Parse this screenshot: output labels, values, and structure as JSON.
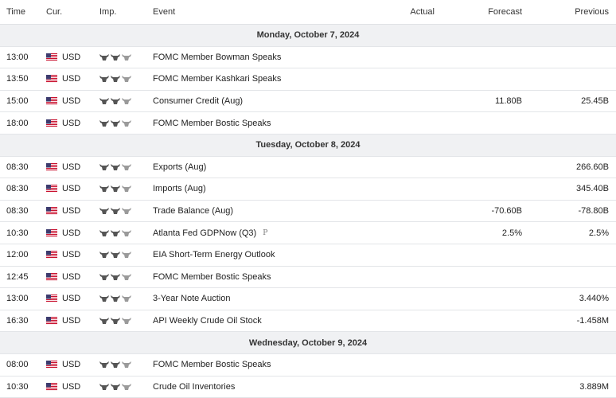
{
  "header": {
    "time": "Time",
    "currency": "Cur.",
    "importance": "Imp.",
    "event": "Event",
    "actual": "Actual",
    "forecast": "Forecast",
    "previous": "Previous"
  },
  "sections": [
    {
      "date": "Monday, October 7, 2024",
      "rows": [
        {
          "time": "13:00",
          "currency": "USD",
          "event": "FOMC Member Bowman Speaks"
        },
        {
          "time": "13:50",
          "currency": "USD",
          "event": "FOMC Member Kashkari Speaks"
        },
        {
          "time": "15:00",
          "currency": "USD",
          "event": "Consumer Credit (Aug)",
          "forecast": "11.80B",
          "previous": "25.45B"
        },
        {
          "time": "18:00",
          "currency": "USD",
          "event": "FOMC Member Bostic Speaks"
        }
      ]
    },
    {
      "date": "Tuesday, October 8, 2024",
      "rows": [
        {
          "time": "08:30",
          "currency": "USD",
          "event": "Exports (Aug)",
          "previous": "266.60B"
        },
        {
          "time": "08:30",
          "currency": "USD",
          "event": "Imports (Aug)",
          "previous": "345.40B"
        },
        {
          "time": "08:30",
          "currency": "USD",
          "event": "Trade Balance (Aug)",
          "forecast": "-70.60B",
          "previous": "-78.80B"
        },
        {
          "time": "10:30",
          "currency": "USD",
          "event": "Atlanta Fed GDPNow (Q3)",
          "badge": "P",
          "forecast": "2.5%",
          "previous": "2.5%"
        },
        {
          "time": "12:00",
          "currency": "USD",
          "event": "EIA Short-Term Energy Outlook"
        },
        {
          "time": "12:45",
          "currency": "USD",
          "event": "FOMC Member Bostic Speaks"
        },
        {
          "time": "13:00",
          "currency": "USD",
          "event": "3-Year Note Auction",
          "previous": "3.440%"
        },
        {
          "time": "16:30",
          "currency": "USD",
          "event": "API Weekly Crude Oil Stock",
          "previous": "-1.458M"
        }
      ]
    },
    {
      "date": "Wednesday, October 9, 2024",
      "rows": [
        {
          "time": "08:00",
          "currency": "USD",
          "event": "FOMC Member Bostic Speaks"
        },
        {
          "time": "10:30",
          "currency": "USD",
          "event": "Crude Oil Inventories",
          "previous": "3.889M"
        }
      ]
    }
  ]
}
